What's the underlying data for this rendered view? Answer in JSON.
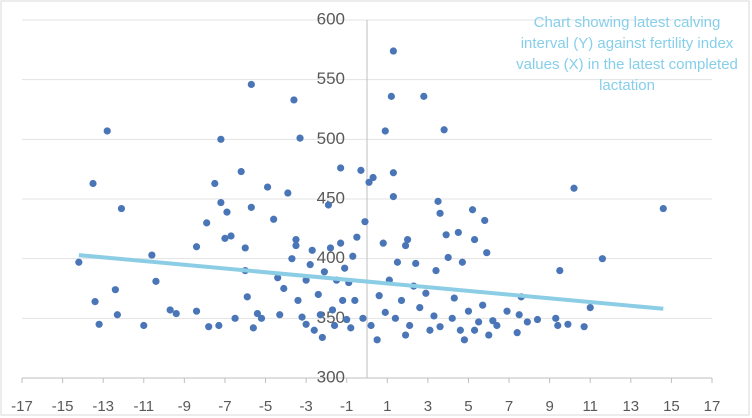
{
  "chart_data": {
    "type": "scatter",
    "title": "Chart showing latest calving interval (Y) against fertility index values (X) in the latest completed lactation",
    "xlim": [
      -17,
      17
    ],
    "xticks": [
      -17,
      -15,
      -13,
      -11,
      -9,
      -7,
      -5,
      -3,
      -1,
      1,
      3,
      5,
      7,
      9,
      11,
      13,
      15,
      17
    ],
    "ylim": [
      300,
      600
    ],
    "yticks": [
      300,
      350,
      400,
      450,
      500,
      550,
      600
    ],
    "grid": true,
    "series": [
      {
        "color": "#4a76b8",
        "x": [
          -14.2,
          -13.5,
          -13.4,
          -13.2,
          -12.8,
          -12.4,
          -12.3,
          -12.1,
          -11.0,
          -10.6,
          -10.4,
          -9.7,
          -9.4,
          -8.4,
          -8.4,
          -7.9,
          -7.8,
          -7.5,
          -7.3,
          -7.2,
          -7.2,
          -7.0,
          -6.9,
          -6.7,
          -6.5,
          -6.2,
          -6.0,
          -6.0,
          -5.9,
          -5.7,
          -5.7,
          -5.6,
          -5.4,
          -5.2,
          -4.9,
          -4.6,
          -4.4,
          -4.3,
          -4.1,
          -3.9,
          -3.7,
          -3.5,
          -3.5,
          -3.4,
          -3.2,
          -3.0,
          -3.3,
          -3.6,
          -3.0,
          -2.8,
          -2.7,
          -2.6,
          -2.4,
          -2.3,
          -2.2,
          -2.1,
          -1.9,
          -1.8,
          -1.7,
          -1.6,
          -1.5,
          -1.3,
          -1.3,
          -1.2,
          -1.1,
          -1.0,
          -0.9,
          -0.8,
          -0.7,
          -0.6,
          -0.5,
          -0.3,
          -0.2,
          -0.1,
          0.1,
          0.3,
          0.5,
          0.6,
          0.8,
          0.9,
          1.1,
          1.2,
          1.3,
          1.3,
          1.3,
          1.4,
          1.5,
          1.7,
          1.9,
          2.0,
          2.1,
          2.3,
          2.4,
          2.6,
          2.8,
          2.9,
          3.1,
          3.3,
          3.4,
          3.5,
          3.6,
          3.8,
          3.9,
          4.0,
          4.2,
          4.3,
          4.5,
          4.6,
          4.7,
          5.0,
          5.2,
          5.3,
          5.5,
          5.7,
          5.8,
          5.9,
          6.2,
          6.4,
          6.9,
          7.4,
          7.5,
          7.6,
          7.9,
          8.4,
          9.3,
          9.4,
          9.5,
          9.9,
          10.2,
          10.7,
          11.0,
          11.6,
          14.6,
          0.2,
          0.9,
          1.9,
          3.6,
          4.8,
          5.3,
          6.0
        ],
        "values": [
          397,
          463,
          364,
          345,
          507,
          374,
          353,
          442,
          344,
          403,
          381,
          357,
          354,
          356,
          410,
          430,
          343,
          463,
          344,
          500,
          447,
          417,
          439,
          419,
          350,
          473,
          409,
          390,
          368,
          546,
          443,
          342,
          354,
          350,
          460,
          433,
          384,
          353,
          375,
          455,
          400,
          416,
          411,
          365,
          351,
          345,
          501,
          533,
          382,
          395,
          407,
          340,
          370,
          353,
          334,
          389,
          445,
          409,
          357,
          344,
          382,
          476,
          413,
          365,
          392,
          349,
          380,
          342,
          402,
          365,
          418,
          474,
          350,
          431,
          464,
          468,
          332,
          369,
          413,
          507,
          382,
          536,
          574,
          472,
          452,
          350,
          397,
          365,
          411,
          416,
          344,
          377,
          396,
          359,
          536,
          371,
          340,
          352,
          390,
          448,
          438,
          508,
          420,
          401,
          350,
          367,
          422,
          340,
          397,
          356,
          441,
          416,
          347,
          361,
          432,
          405,
          348,
          344,
          356,
          338,
          353,
          368,
          347,
          349,
          350,
          344,
          390,
          345,
          459,
          343,
          359,
          400,
          442,
          344,
          355,
          336,
          343,
          332,
          340,
          336
        ]
      }
    ],
    "trendline": {
      "color": "#8ccde6",
      "x": [
        -14.2,
        14.6
      ],
      "values": [
        403,
        358
      ]
    }
  }
}
